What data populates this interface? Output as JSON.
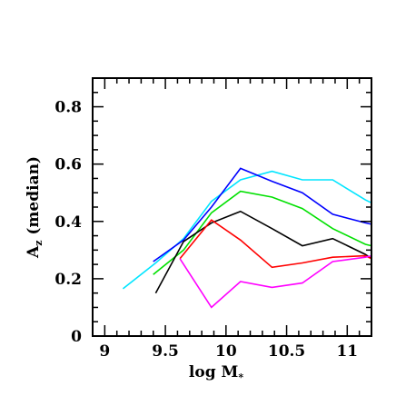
{
  "chart_data": {
    "type": "line",
    "title": "",
    "xlabel": "log M",
    "xlabel_sub": "*",
    "ylabel_main": "A",
    "ylabel_sub": "z",
    "ylabel_rest": " (median)",
    "xlim": [
      8.9,
      11.2
    ],
    "ylim": [
      0,
      0.9
    ],
    "x_ticks": [
      9,
      9.5,
      10,
      10.5,
      11
    ],
    "x_tick_labels": [
      "9",
      "9.5",
      "10",
      "10.5",
      "11"
    ],
    "y_ticks": [
      0,
      0.2,
      0.4,
      0.6,
      0.8
    ],
    "y_tick_labels": [
      "0",
      "0.2",
      "0.4",
      "0.6",
      "0.8"
    ],
    "grid": false,
    "series": [
      {
        "color": "#00e5ff",
        "x": [
          9.15,
          9.42,
          9.65,
          9.88,
          10.12,
          10.38,
          10.63,
          10.88,
          11.15,
          11.2
        ],
        "y": [
          0.165,
          0.255,
          0.34,
          0.47,
          0.545,
          0.575,
          0.545,
          0.545,
          0.475,
          0.465
        ]
      },
      {
        "color": "#0000ff",
        "x": [
          9.4,
          9.65,
          9.88,
          10.12,
          10.38,
          10.63,
          10.88,
          11.15,
          11.2
        ],
        "y": [
          0.26,
          0.335,
          0.45,
          0.585,
          0.54,
          0.5,
          0.425,
          0.395,
          0.39
        ]
      },
      {
        "color": "#00e000",
        "x": [
          9.4,
          9.65,
          9.88,
          10.12,
          10.38,
          10.63,
          10.88,
          11.15,
          11.2
        ],
        "y": [
          0.215,
          0.3,
          0.43,
          0.505,
          0.485,
          0.445,
          0.375,
          0.32,
          0.315
        ]
      },
      {
        "color": "#000000",
        "x": [
          9.42,
          9.65,
          9.88,
          10.12,
          10.38,
          10.63,
          10.88,
          11.15,
          11.2
        ],
        "y": [
          0.15,
          0.33,
          0.395,
          0.435,
          0.375,
          0.315,
          0.34,
          0.285,
          0.27
        ]
      },
      {
        "color": "#ff0000",
        "x": [
          9.62,
          9.88,
          10.12,
          10.38,
          10.63,
          10.88,
          11.15,
          11.2
        ],
        "y": [
          0.27,
          0.405,
          0.335,
          0.24,
          0.255,
          0.275,
          0.28,
          0.27
        ]
      },
      {
        "color": "#ff00ff",
        "x": [
          9.62,
          9.88,
          10.12,
          10.38,
          10.63,
          10.88,
          11.15,
          11.2
        ],
        "y": [
          0.27,
          0.1,
          0.19,
          0.17,
          0.185,
          0.26,
          0.275,
          0.28
        ]
      }
    ]
  }
}
